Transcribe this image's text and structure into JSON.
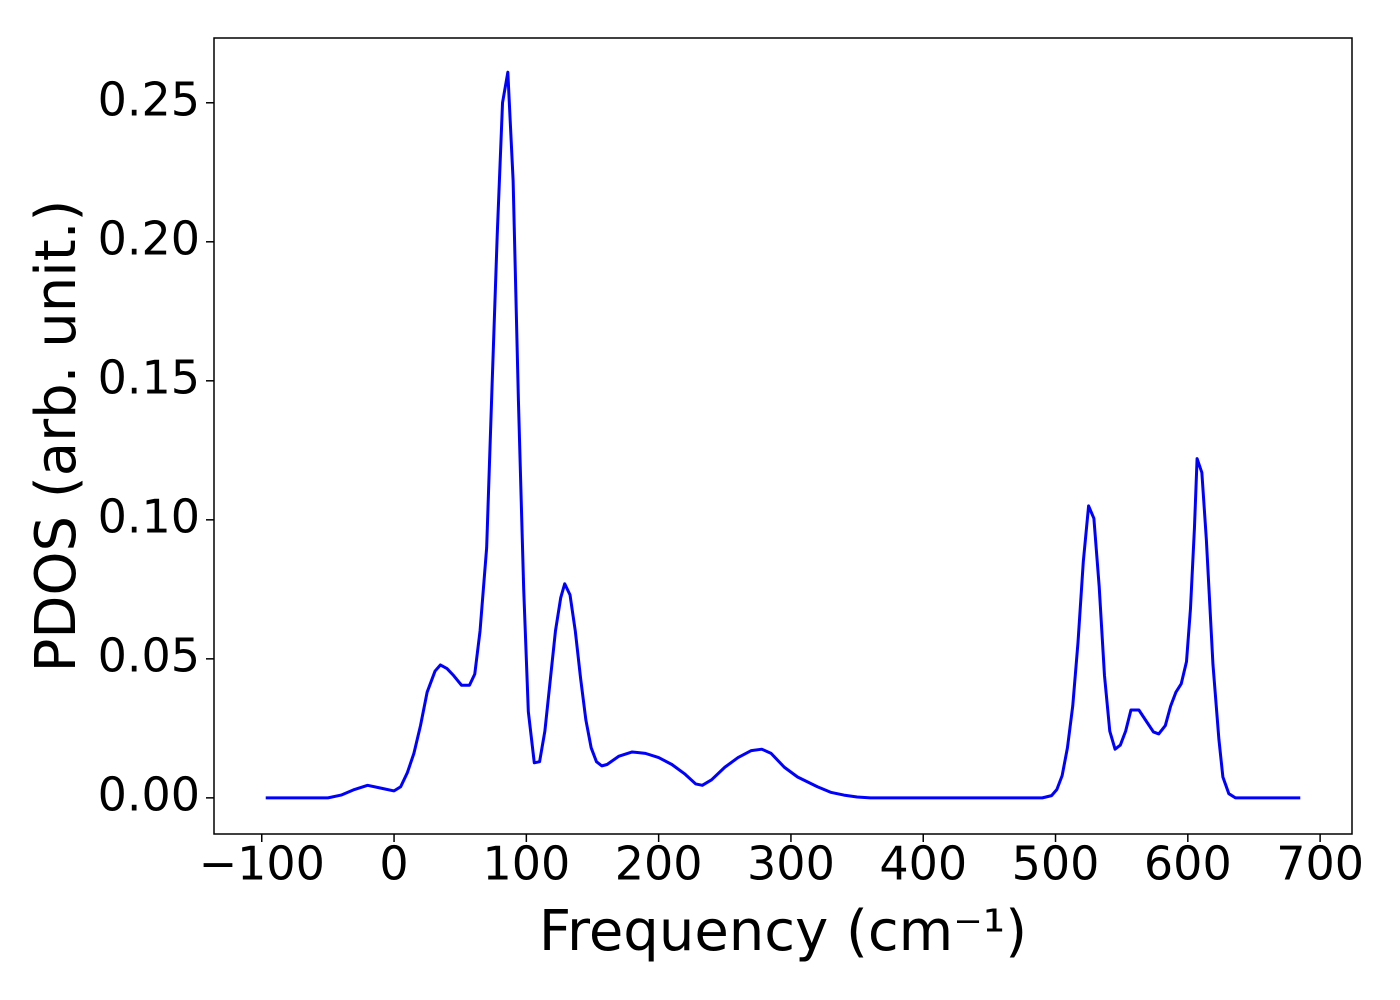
{
  "chart_data": {
    "type": "line",
    "xlabel": "Frequency (cm⁻¹)",
    "ylabel": "PDOS (arb. unit.)",
    "xlim": [
      -136.1,
      724.1
    ],
    "ylim": [
      -0.013,
      0.2733
    ],
    "xticks": [
      {
        "value": -100,
        "label": "−100"
      },
      0,
      100,
      200,
      300,
      400,
      500,
      600,
      700
    ],
    "yticks": [
      {
        "value": 0,
        "label": "0.00"
      },
      0.05,
      {
        "value": 0.1,
        "label": "0.10"
      },
      0.15,
      {
        "value": 0.2,
        "label": "0.20"
      },
      0.25
    ],
    "grid": false,
    "series": [
      {
        "color": "#0000ff",
        "x": [
          -97,
          -50,
          -40,
          -30,
          -20,
          -10,
          0,
          5,
          10,
          15,
          20,
          25,
          31,
          35,
          40,
          45,
          51,
          57,
          61,
          65,
          70,
          74,
          78,
          82,
          86,
          90,
          94,
          98,
          101.5,
          106,
          110,
          114,
          118,
          122,
          126,
          129,
          133,
          137,
          141,
          145,
          149,
          153,
          157,
          161,
          170,
          180,
          190,
          200,
          210,
          220,
          228,
          233,
          240,
          250,
          260,
          270,
          278,
          285,
          295,
          305,
          320,
          330,
          340,
          350,
          360,
          490,
          497,
          501,
          505,
          509,
          513,
          517,
          521,
          525,
          529,
          533,
          537,
          541,
          545,
          549,
          553,
          557,
          563,
          568,
          574,
          578,
          583,
          587,
          591,
          595,
          599,
          602,
          605,
          607,
          610.6,
          614,
          619,
          623.5,
          626.5,
          631,
          636,
          685
        ],
        "values": [
          0,
          0,
          0.001,
          0.003,
          0.0045,
          0.0035,
          0.0025,
          0.004,
          0.009,
          0.016,
          0.026,
          0.038,
          0.0456,
          0.0478,
          0.0465,
          0.044,
          0.0405,
          0.0405,
          0.0445,
          0.06,
          0.09,
          0.147,
          0.2026,
          0.25,
          0.261,
          0.222,
          0.143,
          0.075,
          0.031,
          0.0126,
          0.013,
          0.024,
          0.042,
          0.06,
          0.072,
          0.077,
          0.073,
          0.06,
          0.043,
          0.028,
          0.018,
          0.013,
          0.0115,
          0.012,
          0.015,
          0.0165,
          0.016,
          0.0145,
          0.012,
          0.0085,
          0.005,
          0.0045,
          0.0065,
          0.011,
          0.0145,
          0.017,
          0.0175,
          0.016,
          0.011,
          0.0075,
          0.004,
          0.002,
          0.001,
          0.0003,
          0,
          0,
          0.0008,
          0.003,
          0.008,
          0.018,
          0.033,
          0.056,
          0.085,
          0.105,
          0.1005,
          0.076,
          0.044,
          0.024,
          0.0175,
          0.019,
          0.024,
          0.0316,
          0.0316,
          0.028,
          0.0237,
          0.023,
          0.026,
          0.033,
          0.038,
          0.041,
          0.049,
          0.068,
          0.097,
          0.122,
          0.117,
          0.093,
          0.048,
          0.021,
          0.0075,
          0.0015,
          0,
          0
        ]
      }
    ]
  }
}
